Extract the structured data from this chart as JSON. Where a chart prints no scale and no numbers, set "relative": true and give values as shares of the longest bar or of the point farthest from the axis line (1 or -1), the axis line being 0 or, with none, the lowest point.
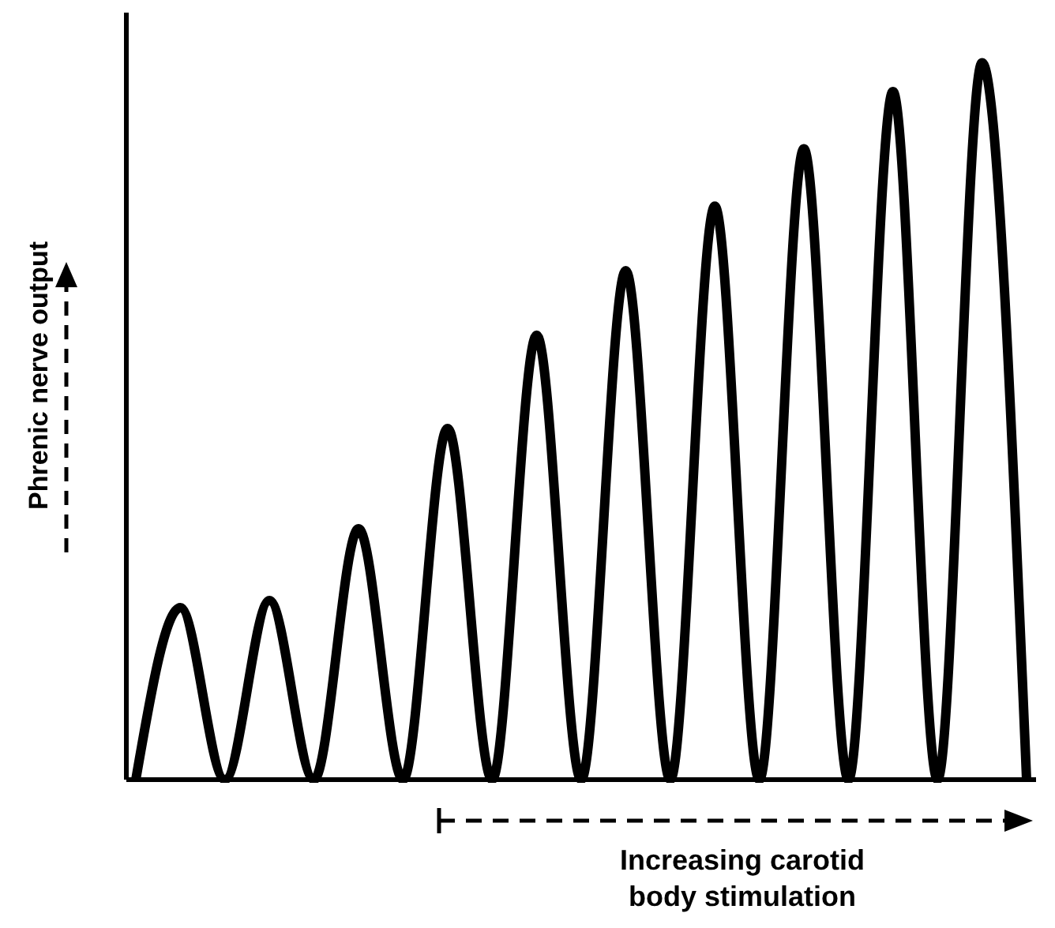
{
  "chart_data": {
    "type": "line",
    "relative": true,
    "xlabel": "Increasing carotid body stimulation",
    "ylabel": "Phrenic nerve output",
    "categories": [
      null,
      null,
      null,
      null,
      null,
      null,
      null,
      null,
      null,
      null,
      null,
      null,
      null,
      null,
      null,
      null,
      null,
      null,
      null,
      null,
      null
    ],
    "series": [
      {
        "color": "#000000",
        "values": [
          0,
          0.24,
          0,
          0.25,
          0,
          0.35,
          0,
          0.49,
          0,
          0.62,
          0,
          0.71,
          0,
          0.8,
          0,
          0.88,
          0,
          0.96,
          0,
          1,
          0
        ]
      }
    ],
    "marker": "none",
    "line_style": "solid"
  }
}
